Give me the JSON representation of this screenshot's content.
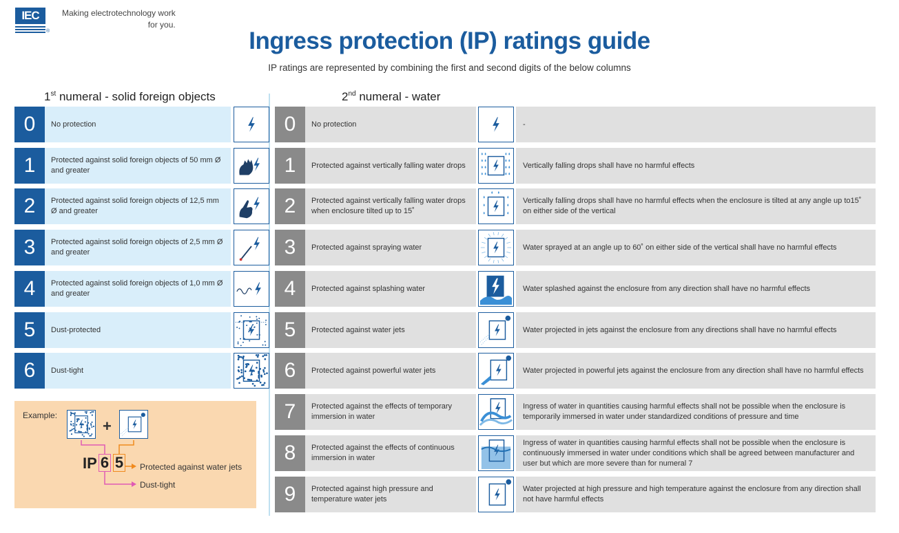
{
  "header": {
    "logo_text": "IEC",
    "tagline_line1": "Making  electrotechnology work",
    "tagline_line2": "for you.",
    "title": "Ingress protection (IP) ratings guide",
    "subtitle": "IP ratings are represented by combining the first and second digits of the below columns"
  },
  "first_numeral": {
    "heading_num": "1",
    "heading_sup": "st",
    "heading_text": " numeral - solid foreign objects",
    "rows": [
      {
        "digit": "0",
        "desc": "No protection",
        "icon": "plain-lightning-icon"
      },
      {
        "digit": "1",
        "desc": "Protected against solid foreign objects of 50 mm Ø and greater",
        "icon": "hand-lightning-icon"
      },
      {
        "digit": "2",
        "desc": "Protected against solid foreign objects of 12,5 mm Ø and greater",
        "icon": "finger-lightning-icon"
      },
      {
        "digit": "3",
        "desc": "Protected against solid foreign objects of 2,5 mm Ø and greater",
        "icon": "tool-lightning-icon"
      },
      {
        "digit": "4",
        "desc": "Protected against solid foreign objects of 1,0 mm Ø and greater",
        "icon": "wire-lightning-icon"
      },
      {
        "digit": "5",
        "desc": "Dust-protected",
        "icon": "dust-lightning-icon"
      },
      {
        "digit": "6",
        "desc": "Dust-tight",
        "icon": "dust-tight-icon"
      }
    ]
  },
  "second_numeral": {
    "heading_num": "2",
    "heading_sup": "nd",
    "heading_text": " numeral - water",
    "rows": [
      {
        "digit": "0",
        "desc": "No protection",
        "detail": "-",
        "icon": "plain-lightning-icon"
      },
      {
        "digit": "1",
        "desc": "Protected against vertically falling water drops",
        "detail": "Vertically falling drops shall have no harmful effects",
        "icon": "vertical-drops-icon"
      },
      {
        "digit": "2",
        "desc": "Protected against vertically falling water drops when enclosure tilted up to 15˚",
        "detail": "Vertically falling drops shall have no harmful effects when the enclosure is tilted at any angle up to15˚ on either side of the vertical",
        "icon": "tilted-drops-icon"
      },
      {
        "digit": "3",
        "desc": "Protected against spraying water",
        "detail": "Water sprayed at an angle up to 60˚ on either side of the vertical shall have no harmful effects",
        "icon": "spray-icon"
      },
      {
        "digit": "4",
        "desc": "Protected against splashing water",
        "detail": "Water splashed against the enclosure from any direction shall have no harmful effects",
        "icon": "splash-icon"
      },
      {
        "digit": "5",
        "desc": "Protected against water jets",
        "detail": "Water projected in jets against the enclosure from any directions shall have no harmful effects",
        "icon": "water-jet-icon"
      },
      {
        "digit": "6",
        "desc": "Protected against powerful water jets",
        "detail": "Water projected in powerful jets against the enclosure from any direction shall have no harmful effects",
        "icon": "powerful-jet-icon"
      },
      {
        "digit": "7",
        "desc": "Protected against the effects of temporary immersion in water",
        "detail": "Ingress of water in quantities causing harmful effects shall not be possible when the enclosure is temporarily immersed in water under standardized conditions of pressure and time",
        "icon": "wave-icon"
      },
      {
        "digit": "8",
        "desc": "Protected against the effects of continuous immersion in water",
        "detail": "Ingress of water in quantities causing harmful effects shall not be possible when the enclosure is continuously immersed in water under conditions which shall be agreed between manufacturer and user but which are more severe than for numeral 7",
        "icon": "immersion-icon"
      },
      {
        "digit": "9",
        "desc": "Protected against high pressure and temperature water jets",
        "detail": "Water projected at high pressure and high temperature against the enclosure from any direction shall not have harmful effects",
        "icon": "high-pressure-jet-icon"
      }
    ]
  },
  "example": {
    "label": "Example:",
    "plus": "+",
    "ip": "IP",
    "digit1": "6",
    "digit2": "5",
    "digit2_text": "Protected against water jets",
    "digit1_text": "Dust-tight"
  },
  "colors": {
    "brand_blue": "#1b5c9e",
    "first_bg": "#d9eefa",
    "second_bg": "#e0e0e0",
    "second_num": "#8a8a8a",
    "example_bg": "#fad8b0",
    "pink": "#e05ab4",
    "orange": "#f08a1e"
  }
}
